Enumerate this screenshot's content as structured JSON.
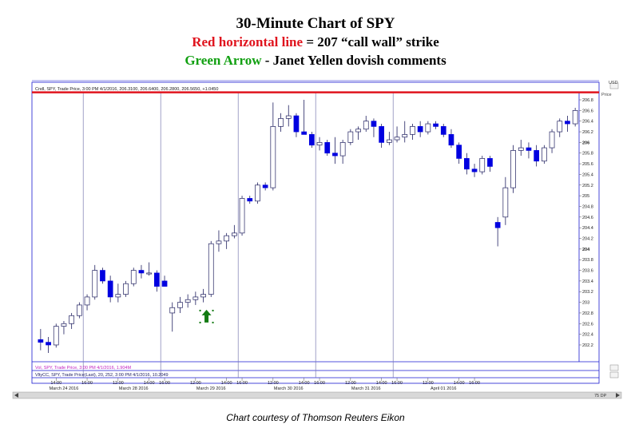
{
  "header": {
    "title": "30-Minute Chart of SPY",
    "line2_red": "Red horizontal line",
    "line2_rest": " = 207 “call wall” strike",
    "line3_green": "Green Arrow",
    "line3_rest": " - Janet Yellen dovish comments"
  },
  "credit": "Chart courtesy of Thomson Reuters Eikon",
  "colors": {
    "red_line": "#e0141e",
    "green_arrow": "#127a12",
    "candle_up": "#ffffff",
    "candle_down": "#0000e0",
    "frame": "#1a1ad0"
  },
  "chart_data": {
    "type": "candlestick",
    "legend_price": "Cndl, SPY, Trade Price, 3:00 PM 4/1/2016, 206.3100, 206.6400, 206.2800, 206.5650, +1.0450",
    "legend_vol": "Vol, SPY, Trade Price, 3:00 PM 4/1/2016, 1.904M",
    "legend_vlty": "VltyCC, SPY, Trade Price(Last), 20, 252, 3:00 PM 4/1/2016, 10.2049",
    "axis_title": "Price",
    "currency_label": "USD",
    "ylim": [
      201.9,
      206.95
    ],
    "y_ticks": [
      202.2,
      202.4,
      202.6,
      202.8,
      203,
      203.2,
      203.4,
      203.6,
      203.8,
      204,
      204.2,
      204.4,
      204.6,
      204.8,
      205,
      205.2,
      205.4,
      205.6,
      205.8,
      206,
      206.2,
      206.4,
      206.6,
      206.8
    ],
    "y_tick_labels": [
      "202.2",
      "202.4",
      "202.6",
      "202.8",
      "203",
      "203.2",
      "203.4",
      "203.6",
      "203.8",
      "204",
      "204.2",
      "204.4",
      "204.6",
      "204.8",
      "205",
      "205.2",
      "205.4",
      "205.6",
      "205.8",
      "206",
      "206.2",
      "206.4",
      "206.6",
      "206.8"
    ],
    "bold_ticks": [
      204,
      206
    ],
    "call_wall": 207,
    "arrow_at_bar": 21,
    "x_time_labels": [
      {
        "bar": 2,
        "label": "14:00"
      },
      {
        "bar": 6,
        "label": "16:00"
      },
      {
        "bar": 10,
        "label": "12:00"
      },
      {
        "bar": 14,
        "label": "14:00"
      },
      {
        "bar": 16,
        "label": "16:00"
      },
      {
        "bar": 20,
        "label": "12:00"
      },
      {
        "bar": 24,
        "label": "14:00"
      },
      {
        "bar": 26,
        "label": "16:00"
      },
      {
        "bar": 30,
        "label": "12:00"
      },
      {
        "bar": 34,
        "label": "14:00"
      },
      {
        "bar": 36,
        "label": "16:00"
      },
      {
        "bar": 40,
        "label": "12:00"
      },
      {
        "bar": 44,
        "label": "14:00"
      },
      {
        "bar": 46,
        "label": "16:00"
      },
      {
        "bar": 50,
        "label": "12:00"
      },
      {
        "bar": 54,
        "label": "14:00"
      },
      {
        "bar": 56,
        "label": "16:00"
      }
    ],
    "x_date_labels": [
      {
        "bar": 3,
        "label": "March 24 2016"
      },
      {
        "bar": 12,
        "label": "March 28 2016"
      },
      {
        "bar": 22,
        "label": "March 29 2016"
      },
      {
        "bar": 32,
        "label": "March 30 2016"
      },
      {
        "bar": 42,
        "label": "March 31 2016"
      },
      {
        "bar": 52,
        "label": "April 01 2016"
      }
    ],
    "day_breaks": [
      5.5,
      15.5,
      25.5,
      35.5,
      45.5
    ],
    "candles": [
      {
        "o": 202.3,
        "h": 202.5,
        "l": 202.1,
        "c": 202.25
      },
      {
        "o": 202.25,
        "h": 202.35,
        "l": 202.05,
        "c": 202.2
      },
      {
        "o": 202.2,
        "h": 202.6,
        "l": 202.15,
        "c": 202.55
      },
      {
        "o": 202.55,
        "h": 202.65,
        "l": 202.4,
        "c": 202.6
      },
      {
        "o": 202.6,
        "h": 202.8,
        "l": 202.5,
        "c": 202.75
      },
      {
        "o": 202.75,
        "h": 203.0,
        "l": 202.7,
        "c": 202.95
      },
      {
        "o": 202.95,
        "h": 203.15,
        "l": 202.85,
        "c": 203.1
      },
      {
        "o": 203.1,
        "h": 203.7,
        "l": 203.05,
        "c": 203.6
      },
      {
        "o": 203.6,
        "h": 203.65,
        "l": 203.35,
        "c": 203.4
      },
      {
        "o": 203.4,
        "h": 203.5,
        "l": 203.0,
        "c": 203.1
      },
      {
        "o": 203.1,
        "h": 203.35,
        "l": 203.0,
        "c": 203.15
      },
      {
        "o": 203.15,
        "h": 203.4,
        "l": 203.1,
        "c": 203.35
      },
      {
        "o": 203.35,
        "h": 203.65,
        "l": 203.3,
        "c": 203.6
      },
      {
        "o": 203.6,
        "h": 203.7,
        "l": 203.45,
        "c": 203.55
      },
      {
        "o": 203.55,
        "h": 203.75,
        "l": 203.5,
        "c": 203.55
      },
      {
        "o": 203.55,
        "h": 203.6,
        "l": 203.2,
        "c": 203.3
      },
      {
        "o": 203.4,
        "h": 203.5,
        "l": 203.3,
        "c": 203.3
      },
      {
        "o": 202.8,
        "h": 203.0,
        "l": 202.45,
        "c": 202.9
      },
      {
        "o": 202.9,
        "h": 203.1,
        "l": 202.8,
        "c": 203.0
      },
      {
        "o": 203.0,
        "h": 203.15,
        "l": 202.9,
        "c": 203.05
      },
      {
        "o": 203.05,
        "h": 203.2,
        "l": 202.95,
        "c": 203.1
      },
      {
        "o": 203.1,
        "h": 203.25,
        "l": 203.0,
        "c": 203.15
      },
      {
        "o": 203.15,
        "h": 204.15,
        "l": 203.1,
        "c": 204.1
      },
      {
        "o": 204.1,
        "h": 204.35,
        "l": 203.95,
        "c": 204.15
      },
      {
        "o": 204.15,
        "h": 204.3,
        "l": 204.0,
        "c": 204.25
      },
      {
        "o": 204.25,
        "h": 204.45,
        "l": 204.2,
        "c": 204.3
      },
      {
        "o": 204.3,
        "h": 205.0,
        "l": 204.25,
        "c": 204.95
      },
      {
        "o": 204.95,
        "h": 205.0,
        "l": 204.85,
        "c": 204.9
      },
      {
        "o": 204.9,
        "h": 205.25,
        "l": 204.85,
        "c": 205.2
      },
      {
        "o": 205.2,
        "h": 205.25,
        "l": 205.1,
        "c": 205.15
      },
      {
        "o": 205.15,
        "h": 206.75,
        "l": 205.1,
        "c": 206.3
      },
      {
        "o": 206.3,
        "h": 206.55,
        "l": 206.2,
        "c": 206.45
      },
      {
        "o": 206.45,
        "h": 206.7,
        "l": 206.3,
        "c": 206.5
      },
      {
        "o": 206.5,
        "h": 206.55,
        "l": 206.1,
        "c": 206.2
      },
      {
        "o": 206.2,
        "h": 206.8,
        "l": 206.15,
        "c": 206.15
      },
      {
        "o": 206.15,
        "h": 206.2,
        "l": 205.9,
        "c": 205.95
      },
      {
        "o": 205.95,
        "h": 206.1,
        "l": 205.85,
        "c": 206.0
      },
      {
        "o": 206.0,
        "h": 206.05,
        "l": 205.75,
        "c": 205.8
      },
      {
        "o": 205.8,
        "h": 206.1,
        "l": 205.6,
        "c": 205.75
      },
      {
        "o": 205.75,
        "h": 206.05,
        "l": 205.6,
        "c": 206.0
      },
      {
        "o": 206.0,
        "h": 206.25,
        "l": 205.95,
        "c": 206.2
      },
      {
        "o": 206.2,
        "h": 206.3,
        "l": 206.05,
        "c": 206.25
      },
      {
        "o": 206.25,
        "h": 206.5,
        "l": 206.2,
        "c": 206.4
      },
      {
        "o": 206.4,
        "h": 206.45,
        "l": 206.1,
        "c": 206.3
      },
      {
        "o": 206.3,
        "h": 206.35,
        "l": 205.9,
        "c": 206.0
      },
      {
        "o": 206.0,
        "h": 206.2,
        "l": 205.95,
        "c": 206.05
      },
      {
        "o": 206.05,
        "h": 206.3,
        "l": 206.0,
        "c": 206.1
      },
      {
        "o": 206.1,
        "h": 206.4,
        "l": 206.0,
        "c": 206.15
      },
      {
        "o": 206.15,
        "h": 206.35,
        "l": 206.05,
        "c": 206.3
      },
      {
        "o": 206.3,
        "h": 206.4,
        "l": 206.1,
        "c": 206.2
      },
      {
        "o": 206.2,
        "h": 206.4,
        "l": 206.15,
        "c": 206.35
      },
      {
        "o": 206.35,
        "h": 206.4,
        "l": 206.25,
        "c": 206.3
      },
      {
        "o": 206.3,
        "h": 206.35,
        "l": 206.1,
        "c": 206.15
      },
      {
        "o": 206.15,
        "h": 206.25,
        "l": 205.9,
        "c": 205.95
      },
      {
        "o": 205.95,
        "h": 206.0,
        "l": 205.6,
        "c": 205.7
      },
      {
        "o": 205.7,
        "h": 205.8,
        "l": 205.4,
        "c": 205.5
      },
      {
        "o": 205.5,
        "h": 205.6,
        "l": 205.35,
        "c": 205.45
      },
      {
        "o": 205.45,
        "h": 205.75,
        "l": 205.4,
        "c": 205.7
      },
      {
        "o": 205.7,
        "h": 205.75,
        "l": 205.45,
        "c": 205.55
      },
      {
        "o": 204.5,
        "h": 204.6,
        "l": 204.05,
        "c": 204.4
      },
      {
        "o": 204.6,
        "h": 205.35,
        "l": 204.45,
        "c": 205.15
      },
      {
        "o": 205.15,
        "h": 205.95,
        "l": 205.05,
        "c": 205.85
      },
      {
        "o": 205.85,
        "h": 206.05,
        "l": 205.75,
        "c": 205.9
      },
      {
        "o": 205.9,
        "h": 206.0,
        "l": 205.7,
        "c": 205.85
      },
      {
        "o": 205.85,
        "h": 205.95,
        "l": 205.55,
        "c": 205.65
      },
      {
        "o": 205.65,
        "h": 205.95,
        "l": 205.6,
        "c": 205.9
      },
      {
        "o": 205.9,
        "h": 206.25,
        "l": 205.8,
        "c": 206.2
      },
      {
        "o": 206.2,
        "h": 206.45,
        "l": 206.1,
        "c": 206.4
      },
      {
        "o": 206.4,
        "h": 206.5,
        "l": 206.2,
        "c": 206.35
      },
      {
        "o": 206.35,
        "h": 206.65,
        "l": 206.3,
        "c": 206.6
      }
    ],
    "scroll_value": "75 DP"
  }
}
